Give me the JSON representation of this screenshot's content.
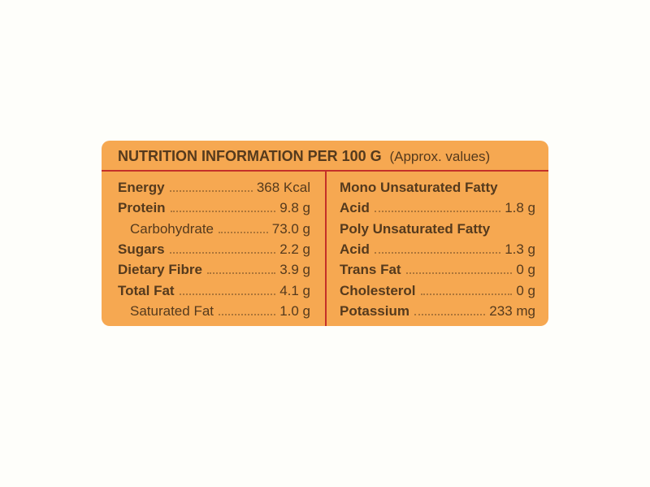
{
  "card": {
    "background_color": "#f6a851",
    "divider_color": "#c43029",
    "text_color": "#553a1d",
    "header": {
      "title": "NUTRITION INFORMATION PER 100 G",
      "subtitle": "(Approx. values)"
    },
    "left_column": {
      "rows": [
        {
          "label": "Energy",
          "value": "368 Kcal"
        },
        {
          "label": "Protein",
          "value": "9.8 g"
        },
        {
          "label": "Carbohydrate",
          "value": "73.0 g"
        },
        {
          "label": "Sugars",
          "value": "2.2 g"
        },
        {
          "label": "Dietary Fibre",
          "value": "3.9 g"
        },
        {
          "label": "Total Fat",
          "value": "4.1 g"
        },
        {
          "label": "Saturated Fat",
          "value": "1.0 g"
        }
      ]
    },
    "right_column": {
      "rows": [
        {
          "label": "Mono Unsaturated Fatty",
          "value": ""
        },
        {
          "label": "Acid",
          "value": "1.8 g"
        },
        {
          "label": "Poly Unsaturated Fatty",
          "value": ""
        },
        {
          "label": "Acid",
          "value": "1.3 g"
        },
        {
          "label": "Trans Fat",
          "value": "0 g"
        },
        {
          "label": "Cholesterol",
          "value": "0 g"
        },
        {
          "label": "Potassium",
          "value": "233 mg"
        }
      ]
    }
  }
}
